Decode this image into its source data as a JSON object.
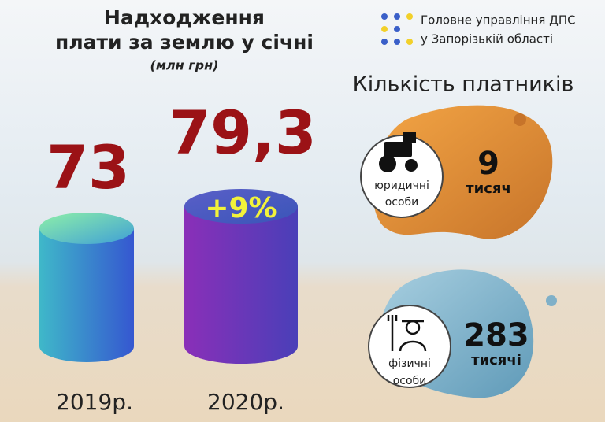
{
  "header": {
    "title_line1": "Надходження",
    "title_line2": "плати за землю у січні",
    "unit": "(млн грн)"
  },
  "logo": {
    "line1": "Головне управління ДПС",
    "line2": "у Запорізькій області"
  },
  "revenue": [
    {
      "year": "2019р.",
      "amount": "73"
    },
    {
      "year": "2020р.",
      "amount": "79,3",
      "change": "+9%"
    }
  ],
  "payers": {
    "title": "Кількість платників",
    "groups": [
      {
        "label_line1": "юридичні",
        "label_line2": "особи",
        "count": "9",
        "unit": "тисяч"
      },
      {
        "label_line1": "фізичні",
        "label_line2": "особи",
        "count": "283",
        "unit": "тисячі"
      }
    ]
  }
}
